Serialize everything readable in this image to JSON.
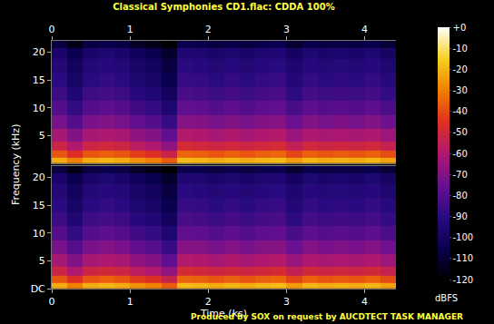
{
  "chart_data": {
    "type": "heatmap",
    "title": "Classical Symphonies CD1.flac: CDDA 100%",
    "xlabel": "Time (ks)",
    "ylabel": "Frequency (kHz)",
    "annotations": [
      "Produced by SOX on request by AUCDTECT TASK MANAGER"
    ],
    "xlim": [
      0,
      4.4
    ],
    "xticks": [
      0,
      1,
      2,
      3,
      4
    ],
    "ylim": [
      0,
      22.05
    ],
    "x": [
      0.1,
      0.3,
      0.5,
      0.7,
      0.9,
      1.1,
      1.3,
      1.5,
      1.7,
      1.9,
      2.1,
      2.3,
      2.5,
      2.7,
      2.9,
      3.1,
      3.3,
      3.5,
      3.7,
      3.9,
      4.1,
      4.3
    ],
    "y": [
      0.5,
      1.5,
      3,
      5,
      7.5,
      10,
      12.5,
      15,
      17.5,
      20,
      21.5
    ],
    "colorbar": {
      "title": "dBFS",
      "range": [
        -120,
        0
      ],
      "ticks": [
        {
          "value": 0,
          "label": "+0"
        },
        -10,
        -20,
        -30,
        -40,
        -50,
        -60,
        -70,
        -80,
        -90,
        -100,
        -110,
        -120
      ]
    },
    "panels": [
      {
        "yticks": [
          5,
          10,
          15,
          20
        ],
        "z": [
          [
            -22,
            -30,
            -22,
            -20,
            -22,
            -27,
            -30,
            -37,
            -19,
            -20,
            -22,
            -20,
            -22,
            -20,
            -19,
            -25,
            -20,
            -22,
            -21,
            -22,
            -20,
            -24
          ],
          [
            -38,
            -46,
            -38,
            -36,
            -38,
            -43,
            -46,
            -53,
            -35,
            -36,
            -38,
            -36,
            -38,
            -36,
            -35,
            -41,
            -36,
            -38,
            -37,
            -38,
            -36,
            -40
          ],
          [
            -52,
            -60,
            -52,
            -50,
            -52,
            -57,
            -60,
            -67,
            -49,
            -50,
            -52,
            -50,
            -52,
            -50,
            -49,
            -55,
            -50,
            -52,
            -51,
            -52,
            -50,
            -54
          ],
          [
            -62,
            -70,
            -62,
            -60,
            -62,
            -67,
            -70,
            -77,
            -59,
            -60,
            -62,
            -60,
            -62,
            -60,
            -59,
            -65,
            -60,
            -62,
            -61,
            -62,
            -60,
            -64
          ],
          [
            -72,
            -80,
            -72,
            -70,
            -72,
            -77,
            -80,
            -87,
            -69,
            -70,
            -72,
            -70,
            -72,
            -70,
            -69,
            -75,
            -70,
            -72,
            -71,
            -72,
            -70,
            -74
          ],
          [
            -80,
            -88,
            -80,
            -78,
            -80,
            -85,
            -88,
            -95,
            -77,
            -78,
            -80,
            -78,
            -80,
            -78,
            -77,
            -83,
            -78,
            -80,
            -79,
            -80,
            -78,
            -82
          ],
          [
            -86,
            -94,
            -86,
            -84,
            -86,
            -91,
            -94,
            -101,
            -83,
            -84,
            -86,
            -84,
            -86,
            -84,
            -83,
            -89,
            -84,
            -86,
            -85,
            -86,
            -84,
            -88
          ],
          [
            -90,
            -98,
            -90,
            -88,
            -90,
            -95,
            -98,
            -105,
            -87,
            -88,
            -90,
            -88,
            -90,
            -88,
            -87,
            -93,
            -88,
            -90,
            -89,
            -90,
            -88,
            -92
          ],
          [
            -93,
            -101,
            -93,
            -91,
            -93,
            -98,
            -101,
            -108,
            -90,
            -91,
            -93,
            -91,
            -93,
            -91,
            -90,
            -96,
            -91,
            -93,
            -92,
            -93,
            -91,
            -95
          ],
          [
            -97,
            -105,
            -97,
            -95,
            -97,
            -102,
            -105,
            -112,
            -94,
            -95,
            -97,
            -95,
            -97,
            -95,
            -94,
            -100,
            -95,
            -97,
            -96,
            -97,
            -95,
            -99
          ],
          [
            -108,
            -116,
            -108,
            -106,
            -108,
            -113,
            -116,
            -120,
            -105,
            -106,
            -108,
            -106,
            -108,
            -106,
            -105,
            -111,
            -106,
            -108,
            -107,
            -108,
            -106,
            -110
          ]
        ]
      },
      {
        "yticks": [
          {
            "value": 0,
            "label": "DC"
          },
          5,
          10,
          15,
          20
        ],
        "z": [
          [
            -22,
            -30,
            -22,
            -20,
            -22,
            -27,
            -30,
            -37,
            -19,
            -20,
            -22,
            -20,
            -22,
            -20,
            -19,
            -25,
            -20,
            -22,
            -21,
            -22,
            -20,
            -24
          ],
          [
            -38,
            -46,
            -38,
            -36,
            -38,
            -43,
            -46,
            -53,
            -35,
            -36,
            -38,
            -36,
            -38,
            -36,
            -35,
            -41,
            -36,
            -38,
            -37,
            -38,
            -36,
            -40
          ],
          [
            -52,
            -60,
            -52,
            -50,
            -52,
            -57,
            -60,
            -67,
            -49,
            -50,
            -52,
            -50,
            -52,
            -50,
            -49,
            -55,
            -50,
            -52,
            -51,
            -52,
            -50,
            -54
          ],
          [
            -62,
            -70,
            -62,
            -60,
            -62,
            -67,
            -70,
            -77,
            -59,
            -60,
            -62,
            -60,
            -62,
            -60,
            -59,
            -65,
            -60,
            -62,
            -61,
            -62,
            -60,
            -64
          ],
          [
            -72,
            -80,
            -72,
            -70,
            -72,
            -77,
            -80,
            -87,
            -69,
            -70,
            -72,
            -70,
            -72,
            -70,
            -69,
            -75,
            -70,
            -72,
            -71,
            -72,
            -70,
            -74
          ],
          [
            -80,
            -88,
            -80,
            -78,
            -80,
            -85,
            -88,
            -95,
            -77,
            -78,
            -80,
            -78,
            -80,
            -78,
            -77,
            -83,
            -78,
            -80,
            -79,
            -80,
            -78,
            -82
          ],
          [
            -86,
            -94,
            -86,
            -84,
            -86,
            -91,
            -94,
            -101,
            -83,
            -84,
            -86,
            -84,
            -86,
            -84,
            -83,
            -89,
            -84,
            -86,
            -85,
            -86,
            -84,
            -88
          ],
          [
            -90,
            -98,
            -90,
            -88,
            -90,
            -95,
            -98,
            -105,
            -87,
            -88,
            -90,
            -88,
            -90,
            -88,
            -87,
            -93,
            -88,
            -90,
            -89,
            -90,
            -88,
            -92
          ],
          [
            -93,
            -101,
            -93,
            -91,
            -93,
            -98,
            -101,
            -108,
            -90,
            -91,
            -93,
            -91,
            -93,
            -91,
            -90,
            -96,
            -91,
            -93,
            -92,
            -93,
            -91,
            -95
          ],
          [
            -97,
            -105,
            -97,
            -95,
            -97,
            -102,
            -105,
            -112,
            -94,
            -95,
            -97,
            -95,
            -97,
            -95,
            -94,
            -100,
            -95,
            -97,
            -96,
            -97,
            -95,
            -99
          ],
          [
            -108,
            -116,
            -108,
            -106,
            -108,
            -113,
            -116,
            -120,
            -105,
            -106,
            -108,
            -106,
            -108,
            -106,
            -105,
            -111,
            -106,
            -108,
            -107,
            -108,
            -106,
            -110
          ]
        ]
      }
    ]
  }
}
